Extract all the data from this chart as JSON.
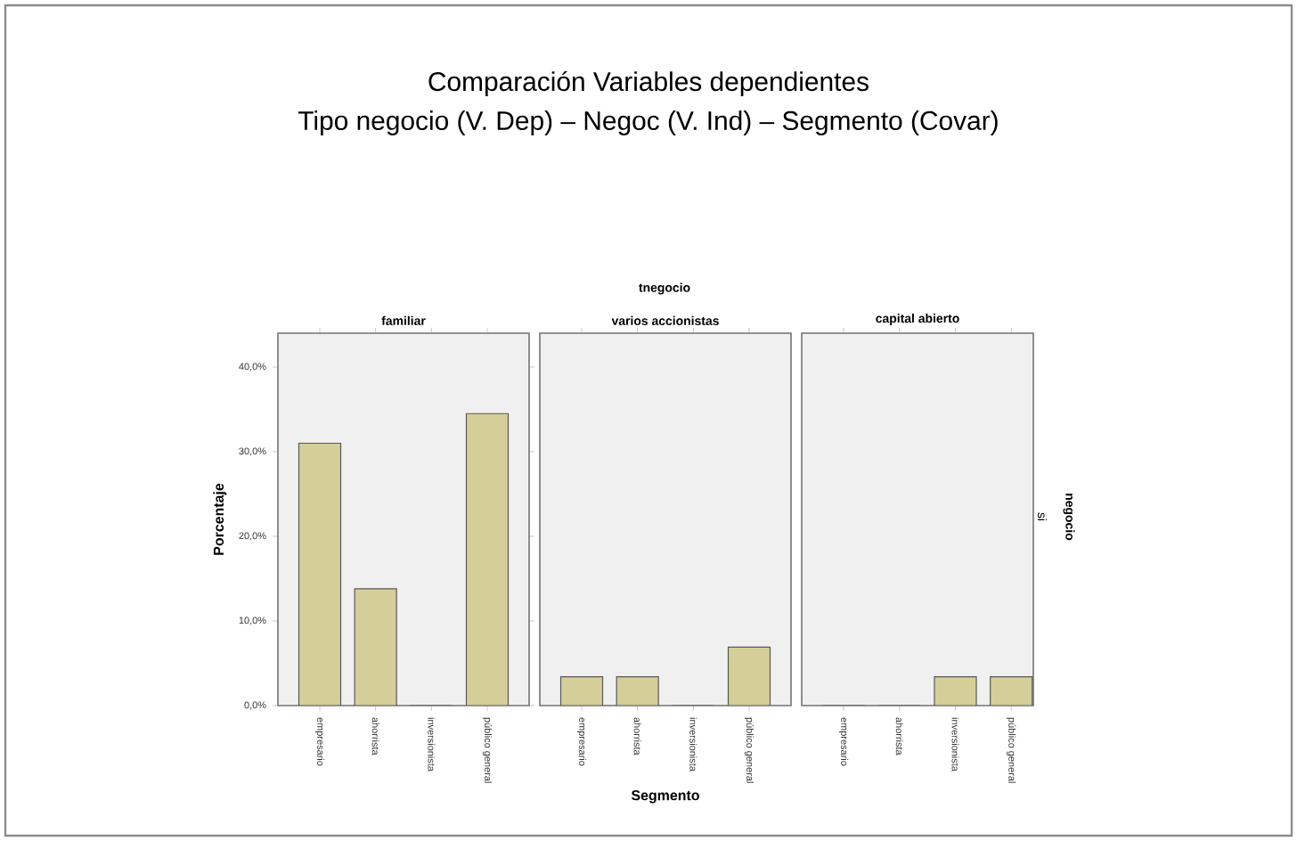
{
  "chart_data": [
    {
      "type": "bar",
      "ylabel": "Porcentaje",
      "categories": [
        "empresario",
        "ahorrista",
        "inversionista",
        "público general"
      ],
      "values": [
        31.0,
        13.8,
        0,
        34.5
      ],
      "color": "#d4cf98",
      "ylim": [
        0,
        44
      ],
      "yticks": [
        {
          "value": 0,
          "label": "0,0%"
        },
        {
          "value": 10,
          "label": "10,0%"
        },
        {
          "value": 20,
          "label": "20,0%"
        },
        {
          "value": 30,
          "label": "30,0%"
        },
        {
          "value": 40,
          "label": "40,0%"
        }
      ],
      "annotations": [
        "familiar"
      ]
    },
    {
      "type": "bar",
      "title": "Comparación Variables dependientes",
      "subtitle": "Tipo negocio (V. Dep) – Negoc (V. Ind) – Segmento (Covar)",
      "xlabel": "Segmento",
      "categories": [
        "empresario",
        "ahorrista",
        "inversionista",
        "público general"
      ],
      "values": [
        3.4,
        3.4,
        0,
        6.9
      ],
      "color": "#d4cf98",
      "ylim": [
        0,
        44
      ],
      "tick_labels": "x",
      "annotations": [
        "varios accionistas",
        "tnegocio"
      ]
    },
    {
      "type": "bar",
      "categories": [
        "empresario",
        "ahorrista",
        "inversionista",
        "público general"
      ],
      "values": [
        0,
        0,
        3.4,
        3.4
      ],
      "color": "#d4cf98",
      "ylim": [
        0,
        44
      ],
      "tick_labels": "x",
      "annotations": [
        "capital abierto",
        "si",
        "negocio"
      ]
    }
  ]
}
